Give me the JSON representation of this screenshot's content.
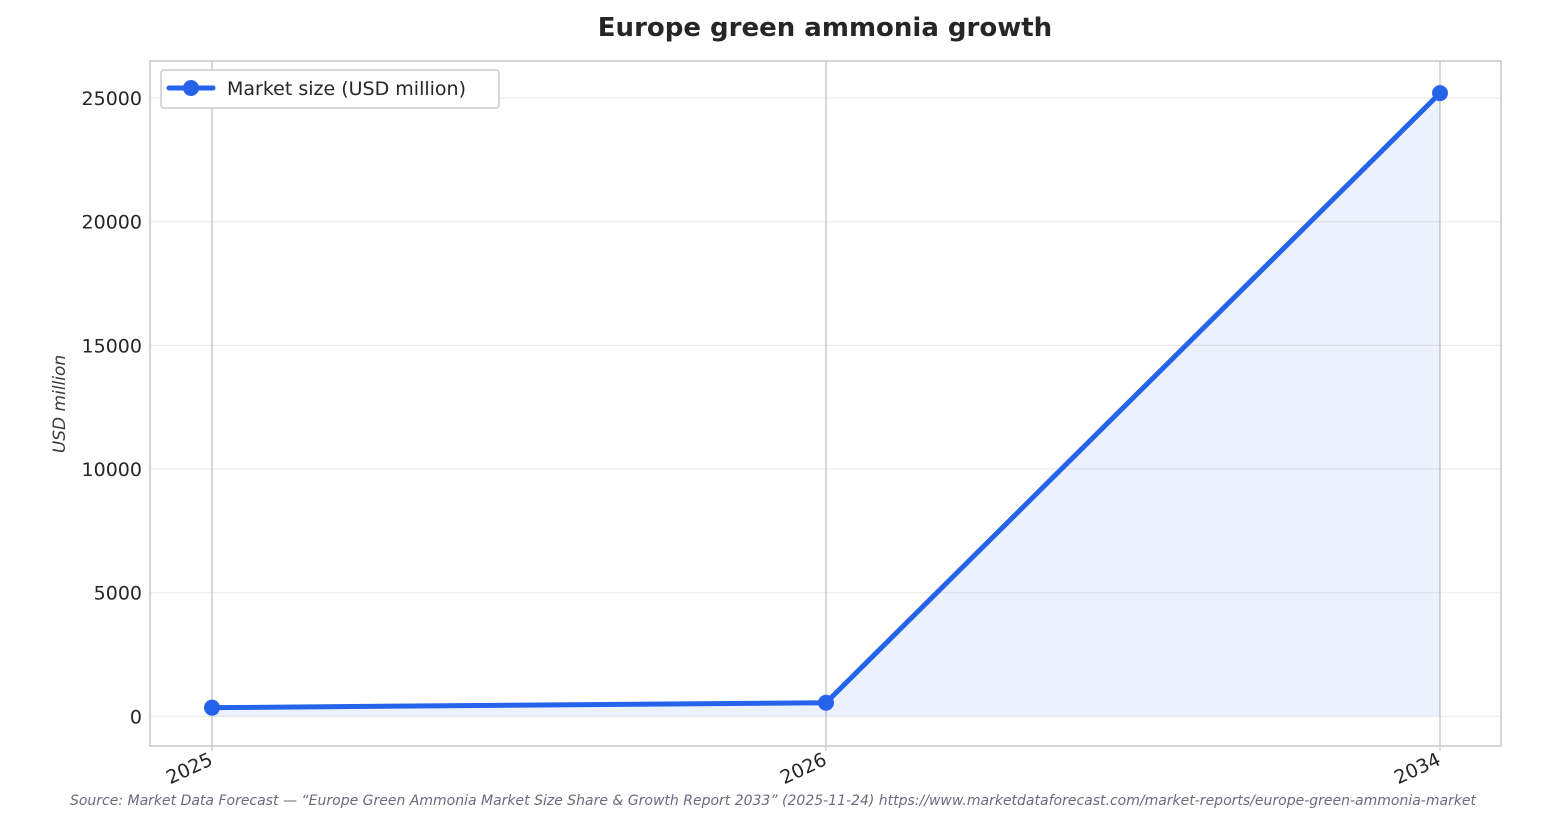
{
  "colors": {
    "line": "#2563eb",
    "fill": "#2563eb",
    "grid": "#ebebeb",
    "frame": "#c8c8c8",
    "vgrid": "#c8c8c8"
  },
  "chart_data": {
    "type": "line",
    "title": "Europe green ammonia growth",
    "xlabel": "",
    "ylabel": "USD million",
    "categories": [
      "2025",
      "2026",
      "2034"
    ],
    "x": [
      2025,
      2026,
      2034
    ],
    "series": [
      {
        "name": "Market size (USD million)",
        "values": [
          350,
          550,
          25200
        ]
      }
    ],
    "ylim": [
      -1200,
      26500
    ],
    "yticks": [
      0,
      5000,
      10000,
      15000,
      20000,
      25000
    ],
    "ytick_labels": [
      "0",
      "5000",
      "10000",
      "15000",
      "20000",
      "25000"
    ],
    "grid": true,
    "legend": "top-left",
    "area_fill": true,
    "source": "Source: Market Data Forecast — “Europe Green Ammonia Market Size Share & Growth Report 2033” (2025-11-24) https://www.marketdataforecast.com/market-reports/europe-green-ammonia-market"
  }
}
